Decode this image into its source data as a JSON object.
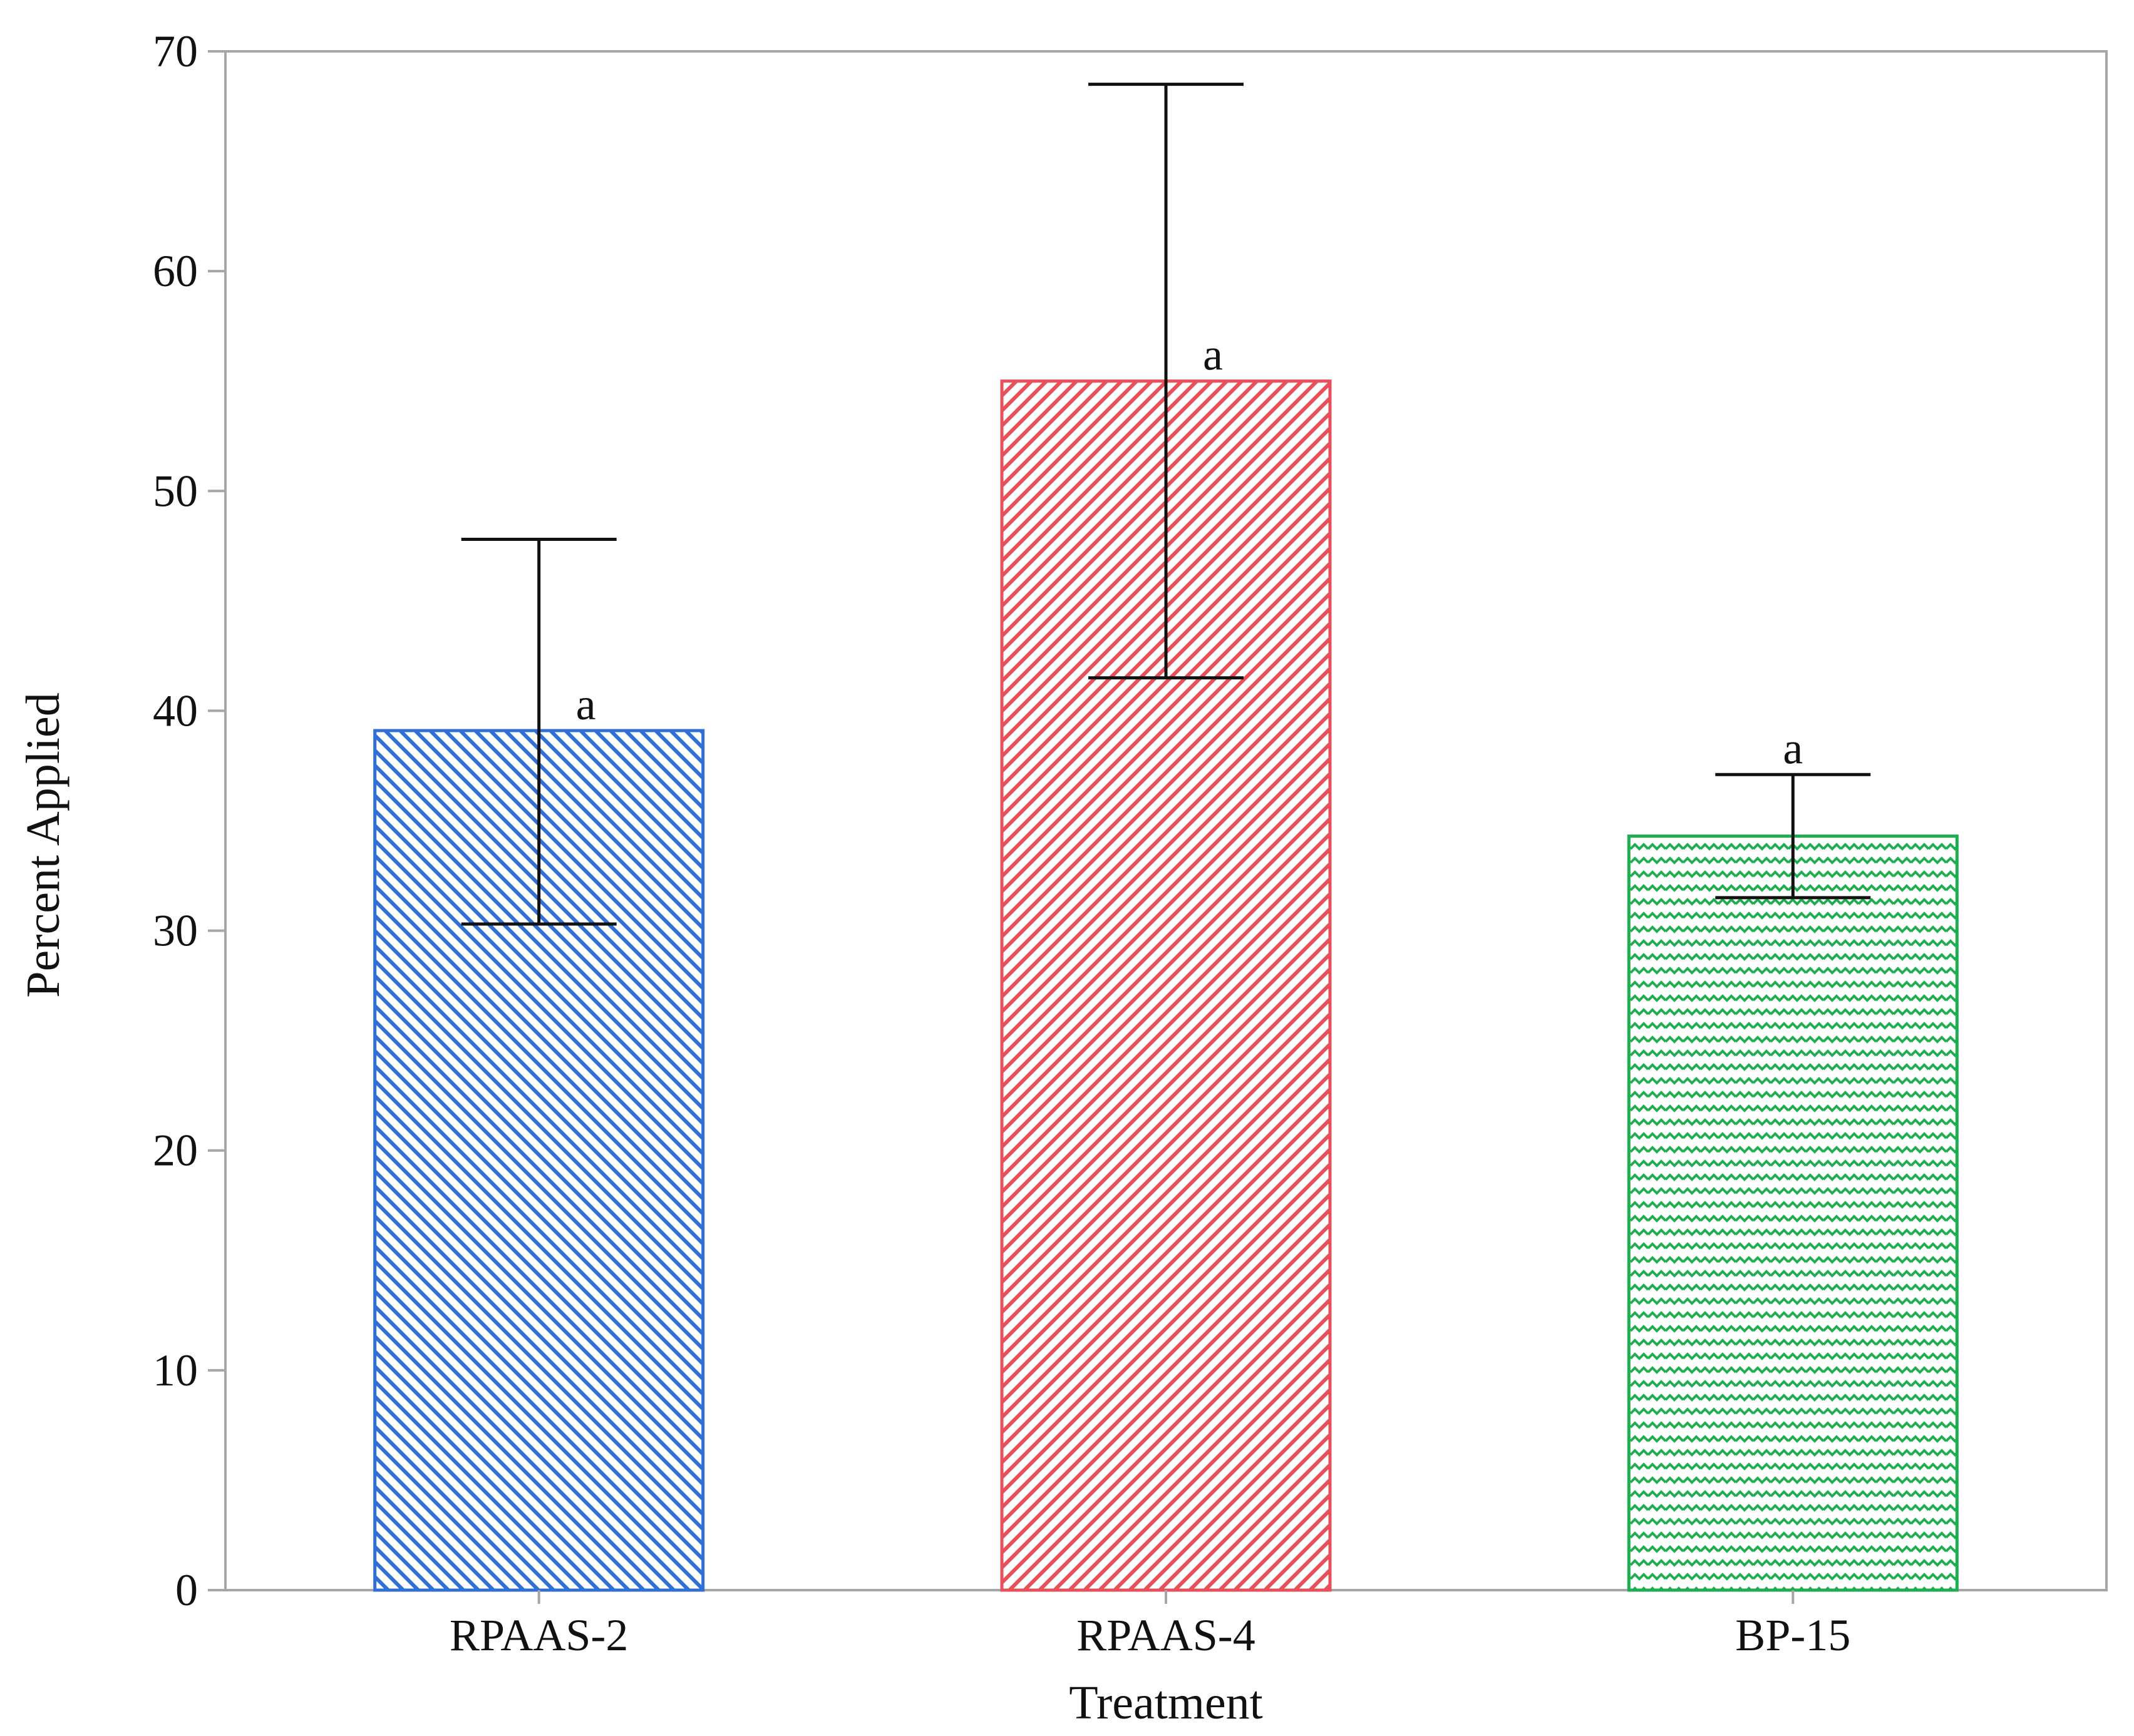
{
  "chart_data": {
    "type": "bar",
    "title": "",
    "xlabel": "Treatment",
    "ylabel": "Percent Applied",
    "ylim": [
      0,
      70
    ],
    "yticks": [
      0,
      10,
      20,
      30,
      40,
      50,
      60,
      70
    ],
    "grid": false,
    "categories": [
      "RPAAS-2",
      "RPAAS-4",
      "BP-15"
    ],
    "values": [
      39.1,
      55.0,
      34.3
    ],
    "error_low": [
      30.3,
      41.5,
      31.5
    ],
    "error_high": [
      47.8,
      68.5,
      37.1
    ],
    "significance_letters": [
      "a",
      "a",
      "a"
    ],
    "bar_colors": [
      "#2f6fd6",
      "#e8505b",
      "#1fae4f"
    ],
    "bar_patterns": [
      "diagonal-down",
      "diagonal-up",
      "zigzag"
    ]
  }
}
